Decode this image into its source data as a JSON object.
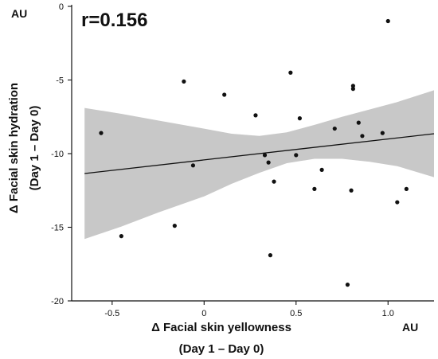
{
  "chart_data": {
    "type": "scatter",
    "annotation": "r=0.156",
    "xlabel": [
      "Δ Facial skin yellowness",
      "(Day 1 – Day 0)"
    ],
    "ylabel": [
      "Δ Facial skin hydration",
      "(Day 1 – Day 0)"
    ],
    "x_unit": "AU",
    "y_unit": "AU",
    "xlim": [
      -0.72,
      1.25
    ],
    "ylim": [
      -20,
      0
    ],
    "xticks": [
      -0.5,
      0,
      0.5,
      1
    ],
    "xtick_labels": [
      "-0.5",
      "0",
      "0.5",
      "1.0"
    ],
    "yticks": [
      0,
      -5,
      -10,
      -15,
      -20
    ],
    "ytick_labels": [
      "0",
      "-5",
      "-10",
      "-15",
      "-20"
    ],
    "grid": false,
    "points": [
      {
        "x": -0.56,
        "y": -8.6
      },
      {
        "x": -0.45,
        "y": -15.6
      },
      {
        "x": -0.16,
        "y": -14.9
      },
      {
        "x": -0.11,
        "y": -5.1
      },
      {
        "x": -0.06,
        "y": -10.8
      },
      {
        "x": 0.11,
        "y": -6.0
      },
      {
        "x": 0.28,
        "y": -7.4
      },
      {
        "x": 0.33,
        "y": -10.1
      },
      {
        "x": 0.35,
        "y": -10.6
      },
      {
        "x": 0.36,
        "y": -16.9
      },
      {
        "x": 0.38,
        "y": -11.9
      },
      {
        "x": 0.47,
        "y": -4.5
      },
      {
        "x": 0.5,
        "y": -10.1
      },
      {
        "x": 0.52,
        "y": -7.6
      },
      {
        "x": 0.6,
        "y": -12.4
      },
      {
        "x": 0.64,
        "y": -11.1
      },
      {
        "x": 0.71,
        "y": -8.3
      },
      {
        "x": 0.78,
        "y": -18.9
      },
      {
        "x": 0.8,
        "y": -12.5
      },
      {
        "x": 0.81,
        "y": -5.4
      },
      {
        "x": 0.81,
        "y": -5.6
      },
      {
        "x": 0.84,
        "y": -7.9
      },
      {
        "x": 0.86,
        "y": -8.8
      },
      {
        "x": 0.97,
        "y": -8.6
      },
      {
        "x": 1.0,
        "y": -1.0
      },
      {
        "x": 1.05,
        "y": -13.3
      },
      {
        "x": 1.1,
        "y": -12.4
      }
    ],
    "regression": {
      "x": [
        -0.65,
        1.25
      ],
      "y": [
        -11.35,
        -8.65
      ]
    },
    "confidence_band": {
      "x": [
        -0.65,
        -0.45,
        -0.25,
        0.0,
        0.15,
        0.3,
        0.45,
        0.6,
        0.75,
        0.9,
        1.05,
        1.25
      ],
      "upper": [
        -6.9,
        -7.3,
        -7.75,
        -8.3,
        -8.65,
        -8.8,
        -8.55,
        -8.05,
        -7.5,
        -7.0,
        -6.5,
        -5.7
      ],
      "lower": [
        -15.8,
        -14.95,
        -14.0,
        -12.9,
        -12.05,
        -11.3,
        -10.65,
        -10.35,
        -10.35,
        -10.55,
        -10.85,
        -11.6
      ]
    },
    "colors": {
      "band": "#c8c8c8",
      "points": "#111111",
      "line": "#111111"
    }
  }
}
